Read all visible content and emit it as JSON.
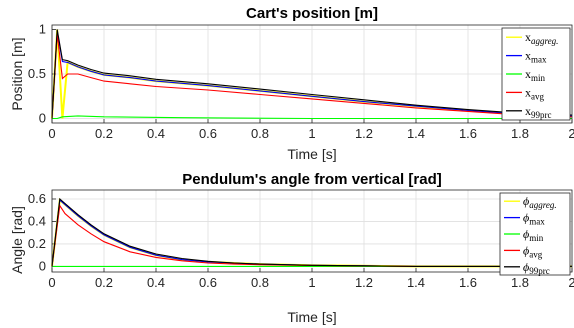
{
  "chart_data": [
    {
      "type": "line",
      "title": "Cart's position [m]",
      "xlabel": "Time [s]",
      "ylabel": "Position [m]",
      "xlim": [
        0,
        2
      ],
      "ylim": [
        -0.05,
        1.05
      ],
      "xticks": [
        "0",
        "0.2",
        "0.4",
        "0.6",
        "0.8",
        "1",
        "1.2",
        "1.4",
        "1.6",
        "1.8",
        "2"
      ],
      "yticks": [
        "0",
        "0.5",
        "1"
      ],
      "grid": true,
      "legend_position": "top-right",
      "series": [
        {
          "name": "x",
          "sub": "aggreg.",
          "sub_style": "italic",
          "color": "#ffff00",
          "x": [
            0,
            0.02,
            0.04,
            0.06,
            0.1,
            0.15,
            0.2,
            0.3,
            0.4,
            0.6,
            0.8,
            1.0,
            1.2,
            1.4,
            1.6,
            1.8,
            2.0
          ],
          "y": [
            0,
            1.0,
            0.0,
            0.63,
            0.58,
            0.53,
            0.49,
            0.46,
            0.42,
            0.37,
            0.31,
            0.25,
            0.19,
            0.14,
            0.09,
            0.05,
            0.03
          ]
        },
        {
          "name": "x",
          "sub": "max",
          "sub_style": "roman",
          "color": "#0000ff",
          "x": [
            0,
            0.02,
            0.04,
            0.06,
            0.1,
            0.15,
            0.2,
            0.3,
            0.4,
            0.6,
            0.8,
            1.0,
            1.2,
            1.4,
            1.6,
            1.8,
            2.0
          ],
          "y": [
            0,
            0.98,
            0.64,
            0.63,
            0.58,
            0.53,
            0.49,
            0.46,
            0.42,
            0.37,
            0.31,
            0.25,
            0.19,
            0.14,
            0.09,
            0.05,
            0.03
          ]
        },
        {
          "name": "x",
          "sub": "min",
          "sub_style": "roman",
          "color": "#00ff00",
          "x": [
            0,
            0.02,
            0.04,
            0.1,
            0.2,
            0.5,
            1.0,
            1.5,
            2.0
          ],
          "y": [
            0,
            0.0,
            0.02,
            0.03,
            0.02,
            0.01,
            0.0,
            0.0,
            0.0
          ]
        },
        {
          "name": "x",
          "sub": "avg",
          "sub_style": "roman",
          "color": "#ff0000",
          "x": [
            0,
            0.02,
            0.04,
            0.06,
            0.1,
            0.15,
            0.2,
            0.3,
            0.4,
            0.6,
            0.8,
            1.0,
            1.2,
            1.4,
            1.6,
            1.8,
            2.0
          ],
          "y": [
            0,
            0.95,
            0.45,
            0.5,
            0.5,
            0.46,
            0.42,
            0.39,
            0.36,
            0.32,
            0.27,
            0.22,
            0.17,
            0.12,
            0.08,
            0.04,
            0.02
          ]
        },
        {
          "name": "x",
          "sub": "99prc",
          "sub_style": "roman",
          "color": "#000000",
          "x": [
            0,
            0.02,
            0.04,
            0.06,
            0.1,
            0.15,
            0.2,
            0.3,
            0.4,
            0.6,
            0.8,
            1.0,
            1.2,
            1.4,
            1.6,
            1.8,
            2.0
          ],
          "y": [
            0,
            1.0,
            0.66,
            0.65,
            0.6,
            0.55,
            0.51,
            0.48,
            0.44,
            0.39,
            0.33,
            0.27,
            0.21,
            0.15,
            0.1,
            0.06,
            0.04
          ]
        }
      ]
    },
    {
      "type": "line",
      "title": "Pendulum's angle from vertical [rad]",
      "xlabel": "Time [s]",
      "ylabel": "Angle [rad]",
      "xlim": [
        0,
        2
      ],
      "ylim": [
        -0.05,
        0.68
      ],
      "xticks": [
        "0",
        "0.2",
        "0.4",
        "0.6",
        "0.8",
        "1",
        "1.2",
        "1.4",
        "1.6",
        "1.8",
        "2"
      ],
      "yticks": [
        "0",
        "0.2",
        "0.4",
        "0.6"
      ],
      "grid": true,
      "legend_position": "top-right",
      "series": [
        {
          "name": "ϕ",
          "sub": "aggreg.",
          "sub_style": "italic",
          "color": "#ffff00",
          "x": [
            0,
            0.03,
            0.05,
            0.1,
            0.15,
            0.2,
            0.3,
            0.4,
            0.5,
            0.6,
            0.7,
            0.8,
            1.0,
            1.2,
            1.4,
            1.6,
            2.0
          ],
          "y": [
            0,
            0.59,
            0.55,
            0.45,
            0.36,
            0.28,
            0.17,
            0.1,
            0.06,
            0.04,
            0.03,
            0.02,
            0.01,
            0.005,
            0.0,
            0.0,
            0.0
          ]
        },
        {
          "name": "ϕ",
          "sub": "max",
          "sub_style": "roman",
          "color": "#0000ff",
          "x": [
            0,
            0.03,
            0.05,
            0.1,
            0.15,
            0.2,
            0.3,
            0.4,
            0.5,
            0.6,
            0.7,
            0.8,
            1.0,
            1.2,
            1.4,
            1.6,
            2.0
          ],
          "y": [
            0,
            0.59,
            0.55,
            0.45,
            0.36,
            0.28,
            0.17,
            0.1,
            0.06,
            0.04,
            0.03,
            0.02,
            0.01,
            0.005,
            0.0,
            0.0,
            0.0
          ]
        },
        {
          "name": "ϕ",
          "sub": "min",
          "sub_style": "roman",
          "color": "#00ff00",
          "x": [
            0,
            0.03,
            0.1,
            0.3,
            0.6,
            1.0,
            1.5,
            2.0
          ],
          "y": [
            0,
            0.0,
            0.0,
            0.0,
            0.0,
            0.0,
            0.0,
            0.0
          ]
        },
        {
          "name": "ϕ",
          "sub": "avg",
          "sub_style": "roman",
          "color": "#ff0000",
          "x": [
            0,
            0.03,
            0.05,
            0.1,
            0.15,
            0.2,
            0.3,
            0.4,
            0.5,
            0.6,
            0.7,
            0.8,
            1.0,
            1.2,
            1.4,
            1.6,
            2.0
          ],
          "y": [
            0,
            0.54,
            0.47,
            0.37,
            0.29,
            0.22,
            0.13,
            0.08,
            0.05,
            0.03,
            0.02,
            0.015,
            0.008,
            0.004,
            0.0,
            0.0,
            0.0
          ]
        },
        {
          "name": "ϕ",
          "sub": "99prc",
          "sub_style": "roman",
          "color": "#000000",
          "x": [
            0,
            0.03,
            0.05,
            0.1,
            0.15,
            0.2,
            0.3,
            0.4,
            0.5,
            0.6,
            0.7,
            0.8,
            1.0,
            1.2,
            1.4,
            1.6,
            2.0
          ],
          "y": [
            0,
            0.6,
            0.56,
            0.46,
            0.37,
            0.29,
            0.18,
            0.11,
            0.07,
            0.045,
            0.03,
            0.02,
            0.01,
            0.005,
            0.0,
            0.0,
            0.0
          ]
        }
      ]
    }
  ]
}
